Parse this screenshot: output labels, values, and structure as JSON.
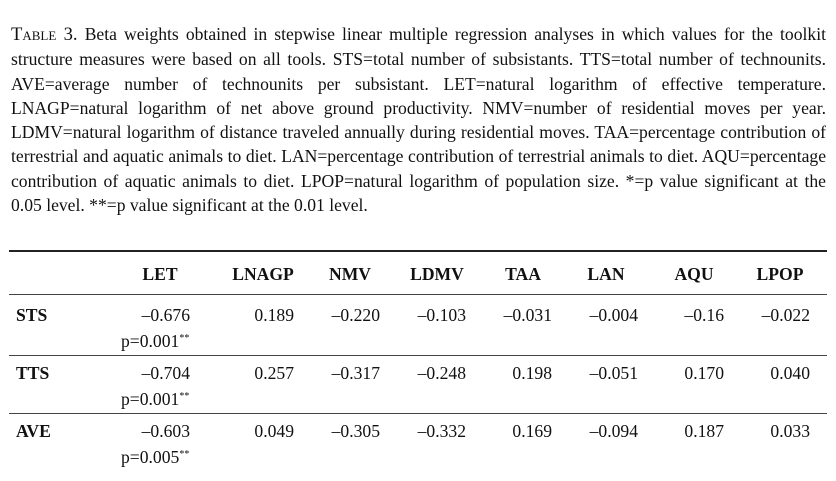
{
  "caption": {
    "label": "Table 3.",
    "text": "Beta weights obtained in stepwise linear multiple regression analyses in which values for the toolkit structure measures were based on all tools. STS=total number of subsistants. TTS=total number of technounits. AVE=average number of technounits per subsistant. LET=natural logarithm of effective temperature. LNAGP=natural logarithm of net above ground productivity. NMV=number of residential moves per year. LDMV=natural logarithm of distance traveled annually during residential moves. TAA=percentage contribution of terrestrial and aquatic animals to diet. LAN=percentage contribution of terrestrial animals to diet. AQU=percentage contribution of aquatic animals to diet. LPOP=natural logarithm of population size. *=p value significant at the 0.05 level. **=p value significant at the 0.01 level."
  },
  "table": {
    "headers": [
      "LET",
      "LNAGP",
      "NMV",
      "LDMV",
      "TAA",
      "LAN",
      "AQU",
      "LPOP"
    ],
    "rows": [
      {
        "label": "STS",
        "let": "–0.676",
        "p": "p=0.001",
        "sig": "**",
        "vals": [
          "0.189",
          "–0.220",
          "–0.103",
          "–0.031",
          "–0.004",
          "–0.16",
          "–0.022"
        ]
      },
      {
        "label": "TTS",
        "let": "–0.704",
        "p": "p=0.001",
        "sig": "**",
        "vals": [
          "0.257",
          "–0.317",
          "–0.248",
          "0.198",
          "–0.051",
          "0.170",
          "0.040"
        ]
      },
      {
        "label": "AVE",
        "let": "–0.603",
        "p": "p=0.005",
        "sig": "**",
        "vals": [
          "0.049",
          "–0.305",
          "–0.332",
          "0.169",
          "–0.094",
          "0.187",
          "0.033"
        ]
      }
    ]
  }
}
